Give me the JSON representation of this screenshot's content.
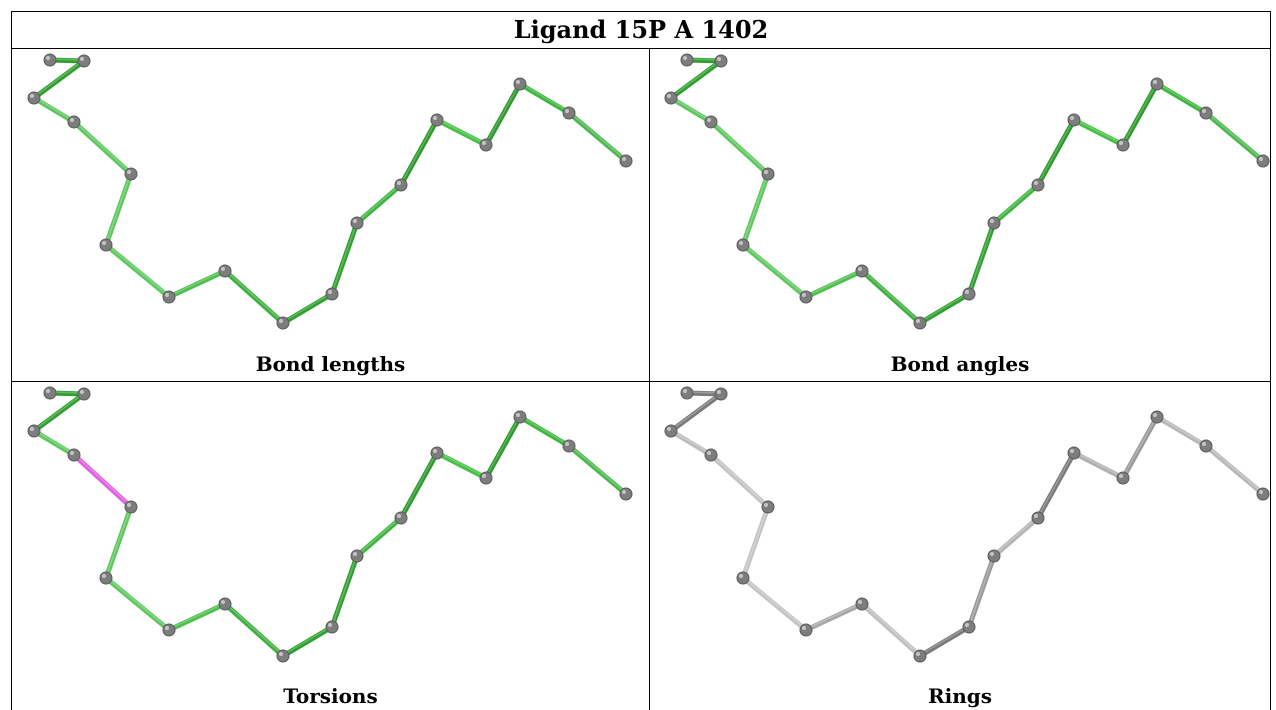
{
  "title": "Ligand 15P A 1402",
  "panels": [
    {
      "caption": "Bond lengths",
      "bond_colors": [
        "#2fa02f",
        "#2fa02f",
        "#5ec85e",
        "#5ec85e",
        "#5ec85e",
        "#5ec85e",
        "#4fbf4f",
        "#3fb03f",
        "#2fa02f",
        "#2fa02f",
        "#3fb53f",
        "#2a9a2a",
        "#46c046",
        "#2a9a2a",
        "#3cb83c",
        "#4cb84c",
        "#4cbc4c"
      ]
    },
    {
      "caption": "Bond angles",
      "bond_colors": [
        "#2fa02f",
        "#2fa02f",
        "#5ec85e",
        "#5ec85e",
        "#5ec85e",
        "#5ec85e",
        "#4fbf4f",
        "#3fb03f",
        "#2fa02f",
        "#2fa02f",
        "#3fb53f",
        "#2a9a2a",
        "#46c046",
        "#2a9a2a",
        "#3cb83c",
        "#4cb84c",
        "#4cbc4c"
      ]
    },
    {
      "caption": "Torsions",
      "bond_colors": [
        "#2fa02f",
        "#2fa02f",
        "#5ec85e",
        "#e060e0",
        "#5ec85e",
        "#5ec85e",
        "#4fbf4f",
        "#3fb03f",
        "#2fa02f",
        "#2fa02f",
        "#3fb53f",
        "#2a9a2a",
        "#46c046",
        "#2a9a2a",
        "#3cb83c",
        "#4cb84c",
        "#c8c8c8"
      ]
    },
    {
      "caption": "Rings",
      "bond_colors": [
        "#7a7a7a",
        "#7a7a7a",
        "#bdbdbd",
        "#c4c4c4",
        "#c4c4c4",
        "#c4c4c4",
        "#a8a8a8",
        "#c0c0c0",
        "#7a7a7a",
        "#9a9a9a",
        "#b4b4b4",
        "#7a7a7a",
        "#b0b0b0",
        "#9a9a9a",
        "#b8b8b8",
        "#b8b8b8",
        "#c4c4c4"
      ]
    }
  ]
}
